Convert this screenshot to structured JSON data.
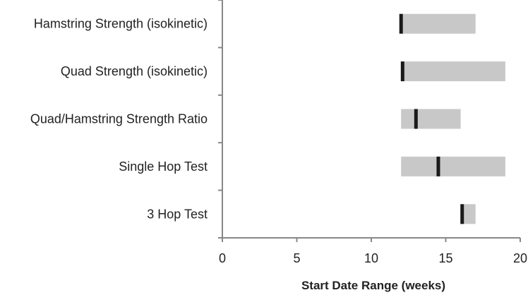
{
  "chart_data": {
    "type": "bar",
    "orientation": "horizontal",
    "title": "",
    "xlabel": "Start Date Range (weeks)",
    "ylabel": "",
    "xlim": [
      0,
      20
    ],
    "xticks": [
      0,
      5,
      10,
      15,
      20
    ],
    "grid": false,
    "legend": "none",
    "categories": [
      "Hamstring Strength (isokinetic)",
      "Quad Strength (isokinetic)",
      "Quad/Hamstring Strength Ratio",
      "Single Hop Test",
      "3 Hop Test"
    ],
    "series": [
      {
        "role": "range_start",
        "values": [
          12,
          12,
          12,
          12,
          16
        ]
      },
      {
        "role": "range_end",
        "values": [
          17,
          19,
          16,
          19,
          17
        ]
      },
      {
        "role": "marker",
        "values": [
          12,
          12.1,
          13,
          14.5,
          16.1
        ]
      }
    ],
    "colors": {
      "range": "#c8c8c8",
      "marker": "#1a1a1a",
      "axis": "#888888",
      "text": "#222222"
    }
  }
}
